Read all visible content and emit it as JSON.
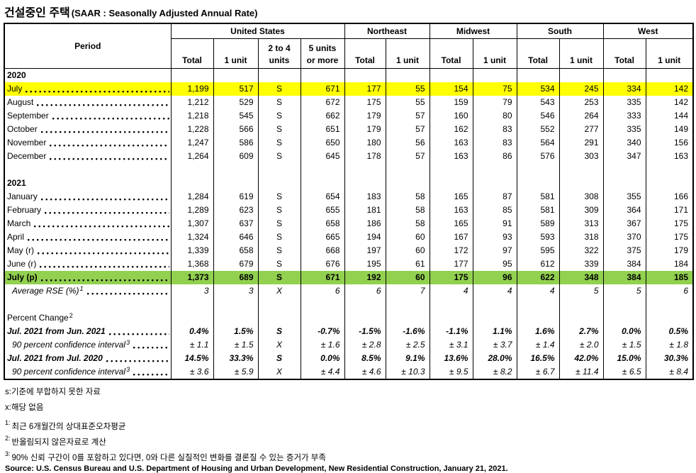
{
  "title": {
    "korean": "건설중인 주택",
    "english": "(SAAR : Seasonally Adjusted Annual Rate)"
  },
  "colors": {
    "highlight_yellow": "#FFFF00",
    "highlight_green": "#92D050",
    "border": "#000000"
  },
  "table": {
    "period_label": "Period",
    "groups": [
      {
        "label": "United States"
      },
      {
        "label": "Northeast"
      },
      {
        "label": "Midwest"
      },
      {
        "label": "South"
      },
      {
        "label": "West"
      }
    ],
    "columns": [
      {
        "l1": "",
        "l2": "Total"
      },
      {
        "l1": "",
        "l2": "1 unit"
      },
      {
        "l1": "2 to 4",
        "l2": "units"
      },
      {
        "l1": "5 units",
        "l2": "or more"
      },
      {
        "l1": "",
        "l2": "Total"
      },
      {
        "l1": "",
        "l2": "1 unit"
      },
      {
        "l1": "",
        "l2": "Total"
      },
      {
        "l1": "",
        "l2": "1 unit"
      },
      {
        "l1": "",
        "l2": "Total"
      },
      {
        "l1": "",
        "l2": "1 unit"
      },
      {
        "l1": "",
        "l2": "Total"
      },
      {
        "l1": "",
        "l2": "1 unit"
      }
    ],
    "rows": [
      {
        "kind": "year",
        "label": "2020"
      },
      {
        "kind": "data",
        "label": "July",
        "highlight": "yellow",
        "values": [
          "1,199",
          "517",
          "S",
          "671",
          "177",
          "55",
          "154",
          "75",
          "534",
          "245",
          "334",
          "142"
        ]
      },
      {
        "kind": "data",
        "label": "August",
        "values": [
          "1,212",
          "529",
          "S",
          "672",
          "175",
          "55",
          "159",
          "79",
          "543",
          "253",
          "335",
          "142"
        ]
      },
      {
        "kind": "data",
        "label": "September",
        "values": [
          "1,218",
          "545",
          "S",
          "662",
          "179",
          "57",
          "160",
          "80",
          "546",
          "264",
          "333",
          "144"
        ]
      },
      {
        "kind": "data",
        "label": "October",
        "values": [
          "1,228",
          "566",
          "S",
          "651",
          "179",
          "57",
          "162",
          "83",
          "552",
          "277",
          "335",
          "149"
        ]
      },
      {
        "kind": "data",
        "label": "November",
        "values": [
          "1,247",
          "586",
          "S",
          "650",
          "180",
          "56",
          "163",
          "83",
          "564",
          "291",
          "340",
          "156"
        ]
      },
      {
        "kind": "data",
        "label": "December",
        "values": [
          "1,264",
          "609",
          "S",
          "645",
          "178",
          "57",
          "163",
          "86",
          "576",
          "303",
          "347",
          "163"
        ]
      },
      {
        "kind": "spacer"
      },
      {
        "kind": "year",
        "label": "2021"
      },
      {
        "kind": "data",
        "label": "January",
        "values": [
          "1,284",
          "619",
          "S",
          "654",
          "183",
          "58",
          "165",
          "87",
          "581",
          "308",
          "355",
          "166"
        ]
      },
      {
        "kind": "data",
        "label": "February",
        "values": [
          "1,289",
          "623",
          "S",
          "655",
          "181",
          "58",
          "163",
          "85",
          "581",
          "309",
          "364",
          "171"
        ]
      },
      {
        "kind": "data",
        "label": "March",
        "values": [
          "1,307",
          "637",
          "S",
          "658",
          "186",
          "58",
          "165",
          "91",
          "589",
          "313",
          "367",
          "175"
        ]
      },
      {
        "kind": "data",
        "label": "April",
        "values": [
          "1,324",
          "646",
          "S",
          "665",
          "194",
          "60",
          "167",
          "93",
          "593",
          "318",
          "370",
          "175"
        ]
      },
      {
        "kind": "data",
        "label": "May (r)",
        "values": [
          "1,339",
          "658",
          "S",
          "668",
          "197",
          "60",
          "172",
          "97",
          "595",
          "322",
          "375",
          "179"
        ]
      },
      {
        "kind": "data",
        "label": "June (r)",
        "values": [
          "1,368",
          "679",
          "S",
          "676",
          "195",
          "61",
          "177",
          "95",
          "612",
          "339",
          "384",
          "184"
        ]
      },
      {
        "kind": "data",
        "label": "July (p)",
        "highlight": "green",
        "values": [
          "1,373",
          "689",
          "S",
          "671",
          "192",
          "60",
          "175",
          "96",
          "622",
          "348",
          "384",
          "185"
        ]
      },
      {
        "kind": "data",
        "label": "Average RSE (%)",
        "sup": "1",
        "style": "italic",
        "indent": true,
        "values": [
          "3",
          "3",
          "X",
          "6",
          "6",
          "7",
          "4",
          "4",
          "4",
          "5",
          "5",
          "6"
        ]
      },
      {
        "kind": "spacer"
      },
      {
        "kind": "section",
        "label": "Percent Change",
        "sup": "2"
      },
      {
        "kind": "data",
        "label": "Jul. 2021 from Jun. 2021",
        "style": "bolditalic",
        "values": [
          "0.4%",
          "1.5%",
          "S",
          "-0.7%",
          "-1.5%",
          "-1.6%",
          "-1.1%",
          "1.1%",
          "1.6%",
          "2.7%",
          "0.0%",
          "0.5%"
        ]
      },
      {
        "kind": "data",
        "label": "90 percent confidence interval",
        "sup": "3",
        "style": "italic",
        "indent": true,
        "values": [
          "± 1.1",
          "± 1.5",
          "X",
          "± 1.6",
          "± 2.8",
          "± 2.5",
          "± 3.1",
          "± 3.7",
          "± 1.4",
          "± 2.0",
          "± 1.5",
          "± 1.8"
        ]
      },
      {
        "kind": "data",
        "label": "Jul. 2021 from Jul. 2020",
        "style": "bolditalic",
        "values": [
          "14.5%",
          "33.3%",
          "S",
          "0.0%",
          "8.5%",
          "9.1%",
          "13.6%",
          "28.0%",
          "16.5%",
          "42.0%",
          "15.0%",
          "30.3%"
        ]
      },
      {
        "kind": "data",
        "label": "90 percent confidence interval",
        "sup": "3",
        "style": "italic",
        "indent": true,
        "values": [
          "± 3.6",
          "± 5.9",
          "X",
          "± 4.4",
          "± 4.6",
          "± 10.3",
          "± 9.5",
          "± 8.2",
          "± 6.7",
          "± 11.4",
          "± 6.5",
          "± 8.4"
        ]
      }
    ]
  },
  "footnotes": {
    "s": "s:기준에 부합하지 못한 자료",
    "x": "x:해당 없음",
    "n1": {
      "sup": "1:",
      "text": "최근 6개월간의 상대표준오차평균"
    },
    "n2": {
      "sup": "2:",
      "text": "반올림되지 않은자료로 계산"
    },
    "n3": {
      "sup": "3:",
      "text": "90% 신뢰 구간이 0를 포함하고 있다면, 0와 다른 실질적인 변화를 결론질 수 있는 증거가 부족"
    },
    "source": "Source: U.S. Census Bureau and U.S. Department of Housing and Urban Development, New Residential Construction, January 21, 2021."
  }
}
